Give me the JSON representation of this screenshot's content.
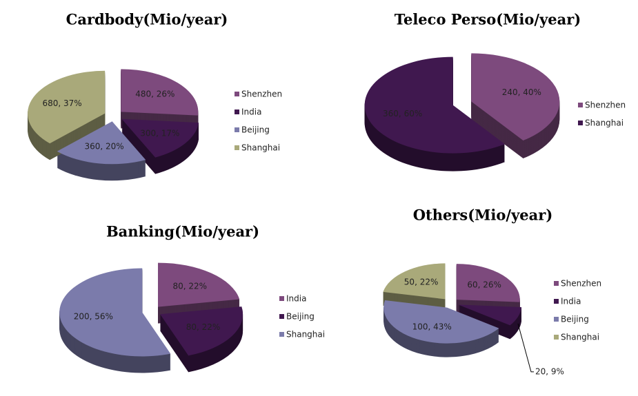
{
  "chart_data": [
    {
      "type": "pie",
      "title": "Cardbody(Mio/year)",
      "categories": [
        "Shenzhen",
        "India",
        "Beijing",
        "Shanghai"
      ],
      "values": [
        480,
        300,
        360,
        680
      ],
      "value_labels": [
        "480, 26%",
        "300, 17%",
        "360, 20%",
        "680, 37%"
      ],
      "colors": [
        "#7d4a7d",
        "#40184f",
        "#7b7bab",
        "#a9a97a"
      ]
    },
    {
      "type": "pie",
      "title": "Teleco Perso(Mio/year)",
      "categories": [
        "Shenzhen",
        "Shanghai"
      ],
      "values": [
        240,
        360
      ],
      "value_labels": [
        "240, 40%",
        "360, 60%"
      ],
      "colors": [
        "#7d4a7d",
        "#40184f"
      ]
    },
    {
      "type": "pie",
      "title": "Banking(Mio/year)",
      "categories": [
        "India",
        "Beijing",
        "Shanghai"
      ],
      "values": [
        80,
        80,
        200
      ],
      "value_labels": [
        "80, 22%",
        "80, 22%",
        "200, 56%"
      ],
      "colors": [
        "#7d4a7d",
        "#40184f",
        "#7b7bab"
      ]
    },
    {
      "type": "pie",
      "title": "Others(Mio/year)",
      "categories": [
        "Shenzhen",
        "India",
        "Beijing",
        "Shanghai"
      ],
      "values": [
        60,
        20,
        100,
        50
      ],
      "value_labels": [
        "60, 26%",
        "20, 9%",
        "100, 43%",
        "50, 22%"
      ],
      "colors": [
        "#7d4a7d",
        "#40184f",
        "#7b7bab",
        "#a9a97a"
      ]
    }
  ]
}
